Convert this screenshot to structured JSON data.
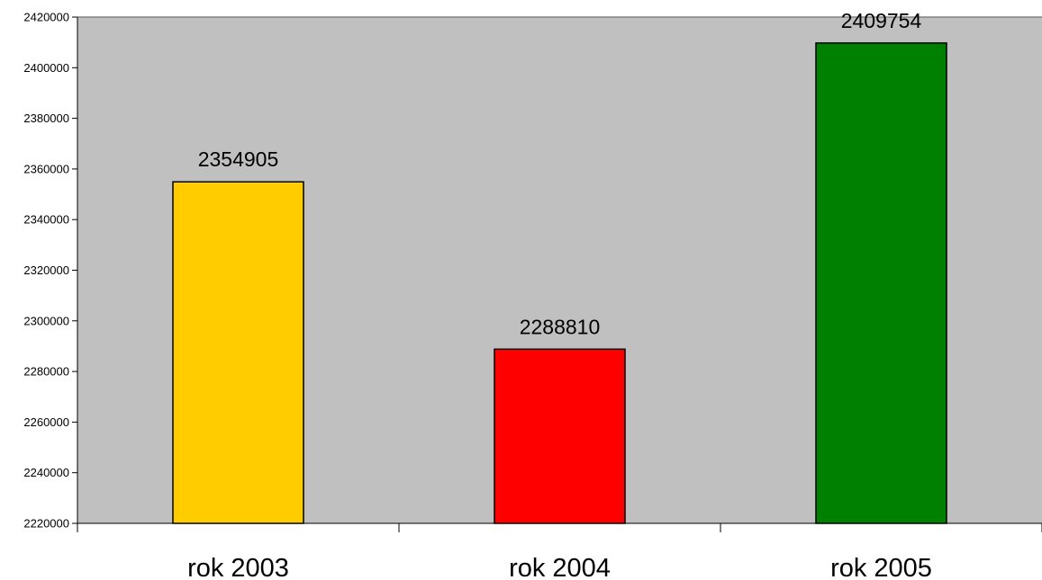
{
  "chart_data": {
    "type": "bar",
    "categories": [
      "rok 2003",
      "rok 2004",
      "rok 2005"
    ],
    "values": [
      2354905,
      2288810,
      2409754
    ],
    "data_labels": [
      "2354905",
      "2288810",
      "2409754"
    ],
    "bar_colors": [
      "#FFCC00",
      "#FF0000",
      "#008000"
    ],
    "plot_background": "#C0C0C0",
    "ylim": [
      2220000,
      2420000
    ],
    "ytick_step": 20000,
    "yticks": [
      "2220000",
      "2240000",
      "2260000",
      "2280000",
      "2300000",
      "2320000",
      "2340000",
      "2360000",
      "2380000",
      "2400000",
      "2420000"
    ],
    "grid": false,
    "legend": "none"
  }
}
